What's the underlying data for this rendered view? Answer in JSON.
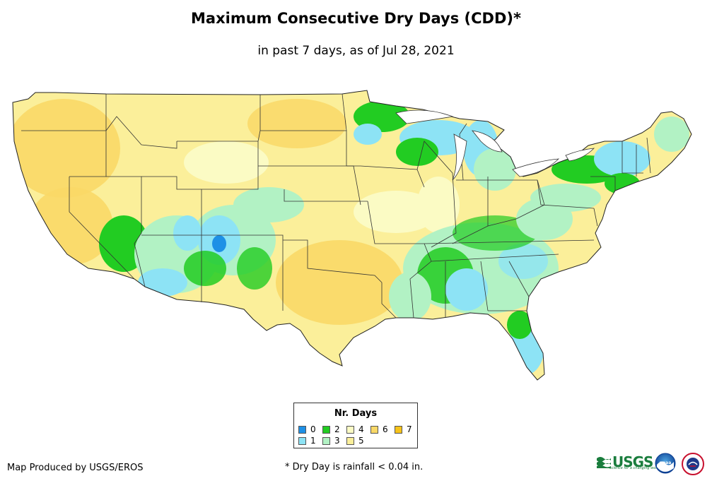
{
  "title": "Maximum Consecutive Dry Days (CDD)*",
  "subtitle": "in past 7 days, as of Jul 28, 2021",
  "legend": {
    "title": "Nr. Days",
    "items": [
      {
        "label": "0",
        "color": "#1e90e6"
      },
      {
        "label": "1",
        "color": "#8de3f5"
      },
      {
        "label": "2",
        "color": "#22cc22"
      },
      {
        "label": "3",
        "color": "#b2f2c4"
      },
      {
        "label": "4",
        "color": "#fbfbc4"
      },
      {
        "label": "5",
        "color": "#fbef9a"
      },
      {
        "label": "6",
        "color": "#f9d867"
      },
      {
        "label": "7",
        "color": "#f7c31a"
      }
    ]
  },
  "footer": {
    "producer": "Map Produced by USGS/EROS",
    "footnote": "* Dry Day is rainfall < 0.04 in."
  },
  "logos": {
    "usgs": "USGS",
    "usgs_tagline": "science for a changing world",
    "noaa": "noaa",
    "nws": "NATIONAL WEATHER SERVICE"
  }
}
